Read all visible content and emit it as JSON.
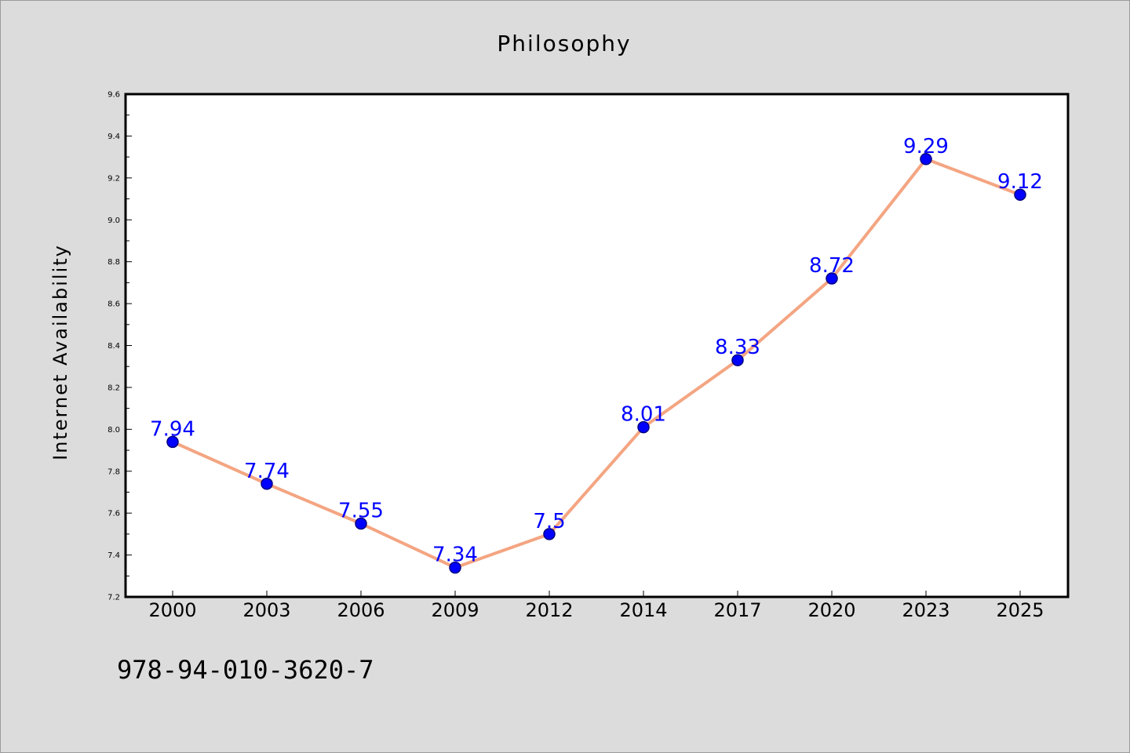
{
  "chart_data": {
    "type": "line",
    "title": "Philosophy",
    "xlabel": "",
    "ylabel": "Internet Availability",
    "categories": [
      "2000",
      "2003",
      "2006",
      "2009",
      "2012",
      "2014",
      "2017",
      "2020",
      "2023",
      "2025"
    ],
    "series": [
      {
        "values": [
          7.94,
          7.74,
          7.55,
          7.34,
          7.5,
          8.01,
          8.33,
          8.72,
          9.29,
          9.12
        ]
      }
    ],
    "data_labels": [
      "7.94",
      "7.74",
      "7.55",
      "7.34",
      "7.5",
      "8.01",
      "8.33",
      "8.72",
      "9.29",
      "9.12"
    ],
    "ylim": [
      7.2,
      9.6
    ],
    "yticks": [
      "7.2",
      "7.4",
      "7.6",
      "7.8",
      "8.0",
      "8.2",
      "8.4",
      "8.6",
      "8.8",
      "9.0",
      "9.2",
      "9.4",
      "9.6"
    ],
    "grid": false,
    "legend": "none",
    "colors": {
      "line": "#f4a582",
      "marker_fill": "#0000ff",
      "marker_stroke": "#000080",
      "label": "#0000ff",
      "plot_background": "#ffffff",
      "page_background": "#dcdcdc"
    }
  },
  "footer": {
    "isbn": "978-94-010-3620-7"
  }
}
